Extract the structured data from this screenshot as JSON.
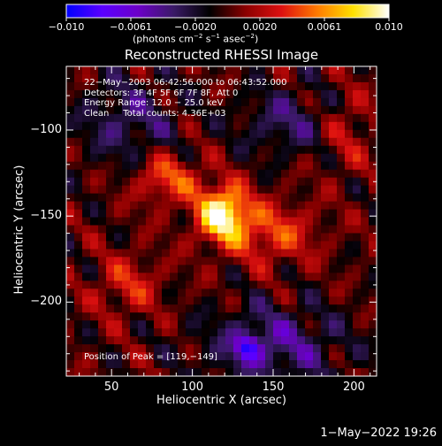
{
  "chart_data": {
    "type": "heatmap",
    "title": "Reconstructed RHESSI Image",
    "xlabel": "Heliocentric X (arcsec)",
    "ylabel": "Heliocentric Y (arcsec)",
    "xlim": [
      22,
      214
    ],
    "ylim": [
      -243,
      -63
    ],
    "xticks": [
      50,
      100,
      150,
      200
    ],
    "yticks": [
      -100,
      -150,
      -200
    ],
    "colorbar": {
      "range": [
        -0.01,
        0.01
      ],
      "ticks": [
        "−0.010",
        "−0.0061",
        "−0.0020",
        "0.0020",
        "0.0061",
        "0.010"
      ],
      "unit_label_parts": [
        "(photons cm",
        "−2",
        " s",
        "−1",
        " asec",
        "−2",
        ")"
      ],
      "colors": [
        "#0000ff",
        "#5a00ff",
        "#6c00c8",
        "#3a1a66",
        "#000000",
        "#8a0000",
        "#dd1010",
        "#ff7a00",
        "#ffe000",
        "#ffffff"
      ]
    },
    "peak": {
      "x": 119,
      "y": -149,
      "value": 0.01
    },
    "info_lines": [
      "22−May−2003 06:42:56.000 to 06:43:52.000",
      "Detectors: 3F 4F 5F 6F 7F 8F, Att 0",
      "Energy Range: 12.0 − 25.0 keV",
      "Clean     Total counts: 4.36E+03"
    ],
    "peak_label": "Position of Peak = [119,−149]"
  },
  "footer": {
    "timestamp": "1−May−2022 19:26"
  }
}
